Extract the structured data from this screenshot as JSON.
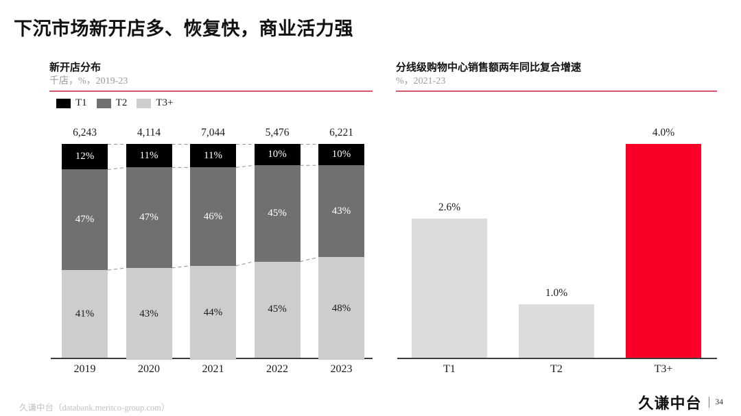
{
  "title": "下沉市场新开店多、恢复快，商业活力强",
  "accent_color": "#fa0026",
  "rule_color": "#d9556a",
  "left_chart": {
    "title": "新开店分布",
    "subtitle": "千店，%，2019-23",
    "legend": [
      {
        "label": "T1",
        "color": "#000000"
      },
      {
        "label": "T2",
        "color": "#707070"
      },
      {
        "label": "T3+",
        "color": "#cdcdcd"
      }
    ]
  },
  "right_chart": {
    "title": "分线级购物中心销售额两年同比复合增速",
    "subtitle": "%，2021-23"
  },
  "chart_data": [
    {
      "type": "bar",
      "stacked": true,
      "percent": true,
      "title": "新开店分布",
      "subtitle": "千店，%，2019-23",
      "categories": [
        "2019",
        "2020",
        "2021",
        "2022",
        "2023"
      ],
      "totals": [
        "6,243",
        "4,114",
        "7,044",
        "5,476",
        "6,221"
      ],
      "series": [
        {
          "name": "T1",
          "color": "#000000",
          "label_color": "#ffffff",
          "values": [
            12,
            11,
            11,
            10,
            10
          ]
        },
        {
          "name": "T2",
          "color": "#707070",
          "label_color": "#ffffff",
          "values": [
            47,
            47,
            46,
            45,
            43
          ]
        },
        {
          "name": "T3+",
          "color": "#cdcdcd",
          "label_color": "#1a1a1a",
          "values": [
            41,
            43,
            44,
            45,
            48
          ]
        }
      ],
      "ylim": [
        0,
        100
      ],
      "connectors": "dashed",
      "legend_position": "top-left",
      "grid": false
    },
    {
      "type": "bar",
      "title": "分线级购物中心销售额两年同比复合增速",
      "subtitle": "%，2021-23",
      "categories": [
        "T1",
        "T2",
        "T3+"
      ],
      "values": [
        2.6,
        1.0,
        4.0
      ],
      "labels": [
        "2.6%",
        "1.0%",
        "4.0%"
      ],
      "colors": [
        "#dcdcdc",
        "#dcdcdc",
        "#fa0026"
      ],
      "ylim": [
        0,
        4.0
      ],
      "grid": false
    }
  ],
  "footer": {
    "source": "久谦中台（databank.meritco-group.com）",
    "brand": "久谦中台",
    "page": "34"
  }
}
